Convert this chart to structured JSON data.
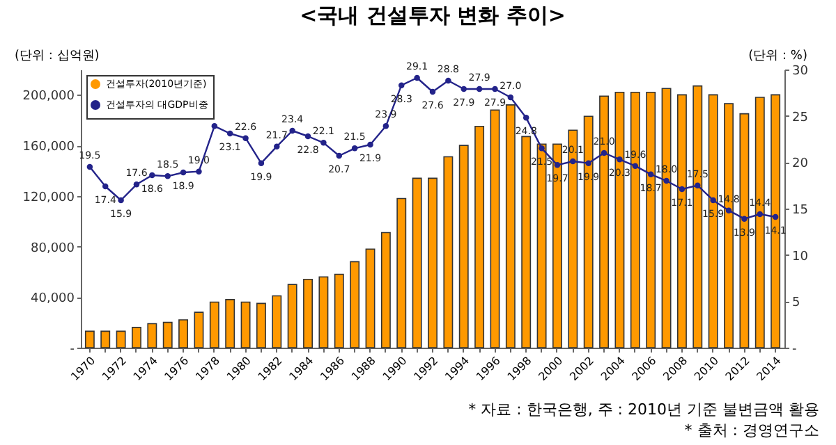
{
  "chart_data": {
    "type": "bar",
    "title": "<국내 건설투자 변화 추이>",
    "ylabel": "(단위 : 십억원)",
    "y2label": "(단위 : %)",
    "categories": [
      "1970",
      null,
      "1972",
      null,
      "1974",
      null,
      "1976",
      null,
      "1978",
      null,
      "1980",
      null,
      "1982",
      null,
      "1984",
      null,
      "1986",
      null,
      "1988",
      null,
      "1990",
      null,
      "1992",
      null,
      "1994",
      null,
      "1996",
      null,
      "1998",
      null,
      "2000",
      null,
      "2002",
      null,
      "2004",
      null,
      "2006",
      null,
      "2008",
      null,
      "2010",
      null,
      "2012",
      null,
      "2014"
    ],
    "series": [
      {
        "name": "건설투자(2010년기준)",
        "color": "#ff9900",
        "values": [
          13000,
          13000,
          13000,
          16000,
          19000,
          20000,
          22000,
          28000,
          36000,
          38000,
          36000,
          35000,
          41000,
          50000,
          54000,
          56000,
          58000,
          68000,
          78000,
          91000,
          118000,
          134000,
          134000,
          151000,
          160000,
          175000,
          188000,
          192000,
          167000,
          161000,
          161000,
          172000,
          183000,
          199000,
          202000,
          202000,
          202000,
          205000,
          200000,
          207000,
          200000,
          193000,
          185000,
          198000,
          200000
        ]
      },
      {
        "name": "건설투자의 대GDP비중",
        "type": "line",
        "axis": "y2",
        "color": "#23238a",
        "values": [
          19.5,
          17.4,
          15.9,
          17.6,
          18.6,
          18.5,
          18.9,
          19.0,
          23.9,
          23.1,
          22.6,
          19.9,
          21.7,
          23.4,
          22.8,
          22.1,
          20.7,
          21.5,
          21.9,
          23.9,
          28.3,
          29.1,
          27.6,
          28.8,
          27.9,
          27.9,
          27.9,
          27.0,
          24.8,
          21.5,
          19.7,
          20.1,
          19.9,
          21.0,
          20.3,
          19.6,
          18.7,
          18.0,
          17.1,
          17.5,
          15.9,
          14.8,
          13.9,
          14.4,
          14.1
        ],
        "value_labels": [
          "19.5",
          "17.4",
          "15.9",
          "17.6",
          "18.6",
          "18.5",
          "18.9",
          "19.0",
          null,
          "23.1",
          "22.6",
          "19.9",
          "21.7",
          "23.4",
          "22.8",
          "22.1",
          "20.7",
          "21.5",
          "21.9",
          "23.9",
          "28.3",
          "29.1",
          "27.6",
          "28.8",
          "27.9",
          "27.9",
          "27.9",
          "27.0",
          "24.8",
          "21.5",
          "19.7",
          "20.1",
          "19.9",
          "21.0",
          "20.3",
          "19.6",
          "18.7",
          "18.0",
          "17.1",
          "17.5",
          "15.9",
          "14.8",
          "13.9",
          "14.4",
          "14.1"
        ]
      }
    ],
    "ylim": [
      0,
      220000
    ],
    "yticks": [
      {
        "value": 0,
        "label": "-"
      },
      {
        "value": 40000,
        "label": "40,000"
      },
      {
        "value": 80000,
        "label": "80,000"
      },
      {
        "value": 120000,
        "label": "120,000"
      },
      {
        "value": 160000,
        "label": "160,000"
      },
      {
        "value": 200000,
        "label": "200,000"
      }
    ],
    "y2lim": [
      0,
      30
    ],
    "y2ticks": [
      {
        "value": 0,
        "label": "-"
      },
      5,
      10,
      15,
      20,
      25,
      30
    ],
    "legend": "top left",
    "marker": "circle",
    "line_style": "solid",
    "grid": false,
    "annotations": [
      "* 자료 : 한국은행, 주 : 2010년 기준 불변금액 활용",
      "* 출처 : 경영연구소"
    ]
  }
}
